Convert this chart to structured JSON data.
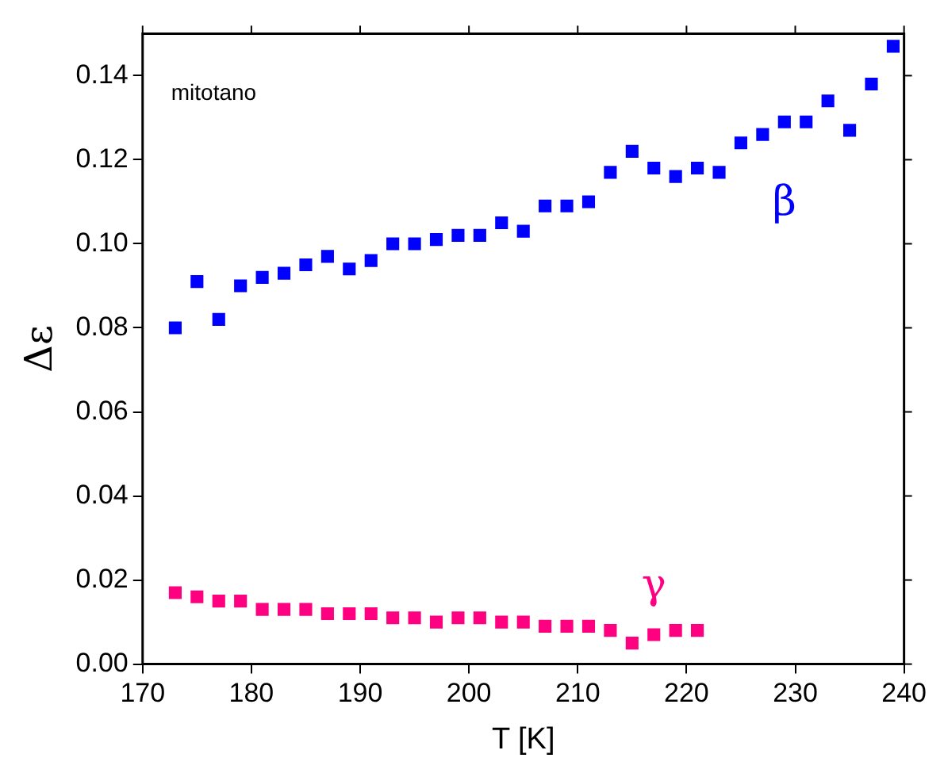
{
  "chart_data": {
    "type": "scatter",
    "xlabel": "T [K]",
    "ylabel": "Δε",
    "marker": "square",
    "grid": false,
    "legend": false,
    "xlim": [
      170,
      240
    ],
    "xticks": [
      170,
      180,
      190,
      200,
      210,
      220,
      230,
      240
    ],
    "ylim": [
      0,
      0.15
    ],
    "yticks": [
      {
        "value": 0,
        "label": "0.00"
      },
      {
        "value": 0.02,
        "label": "0.02"
      },
      {
        "value": 0.04,
        "label": "0.04"
      },
      {
        "value": 0.06,
        "label": "0.06"
      },
      {
        "value": 0.08,
        "label": "0.08"
      },
      {
        "value": 0.1,
        "label": "0.10"
      },
      {
        "value": 0.12,
        "label": "0.12"
      },
      {
        "value": 0.14,
        "label": "0.14"
      }
    ],
    "series": [
      {
        "name": "β",
        "color": "#0000ff",
        "x": [
          173,
          175,
          177,
          179,
          181,
          183,
          185,
          187,
          189,
          191,
          193,
          195,
          197,
          199,
          201,
          203,
          205,
          207,
          209,
          211,
          213,
          215,
          217,
          219,
          221,
          223,
          225,
          227,
          229,
          231,
          233,
          235,
          237,
          239
        ],
        "values": [
          0.08,
          0.091,
          0.082,
          0.09,
          0.092,
          0.093,
          0.095,
          0.097,
          0.094,
          0.096,
          0.1,
          0.1,
          0.101,
          0.102,
          0.102,
          0.105,
          0.103,
          0.109,
          0.109,
          0.11,
          0.117,
          0.122,
          0.118,
          0.116,
          0.118,
          0.117,
          0.124,
          0.126,
          0.129,
          0.129,
          0.134,
          0.127,
          0.138,
          0.147
        ]
      },
      {
        "name": "γ",
        "color": "#ff0080",
        "x": [
          173,
          175,
          177,
          179,
          181,
          183,
          185,
          187,
          189,
          191,
          193,
          195,
          197,
          199,
          201,
          203,
          205,
          207,
          209,
          211,
          213,
          215,
          217,
          219,
          221
        ],
        "values": [
          0.017,
          0.016,
          0.015,
          0.015,
          0.013,
          0.013,
          0.013,
          0.012,
          0.012,
          0.012,
          0.011,
          0.011,
          0.01,
          0.011,
          0.011,
          0.01,
          0.01,
          0.009,
          0.009,
          0.009,
          0.008,
          0.005,
          0.007,
          0.008,
          0.008
        ]
      }
    ],
    "annotations": [
      "mitotano"
    ]
  }
}
